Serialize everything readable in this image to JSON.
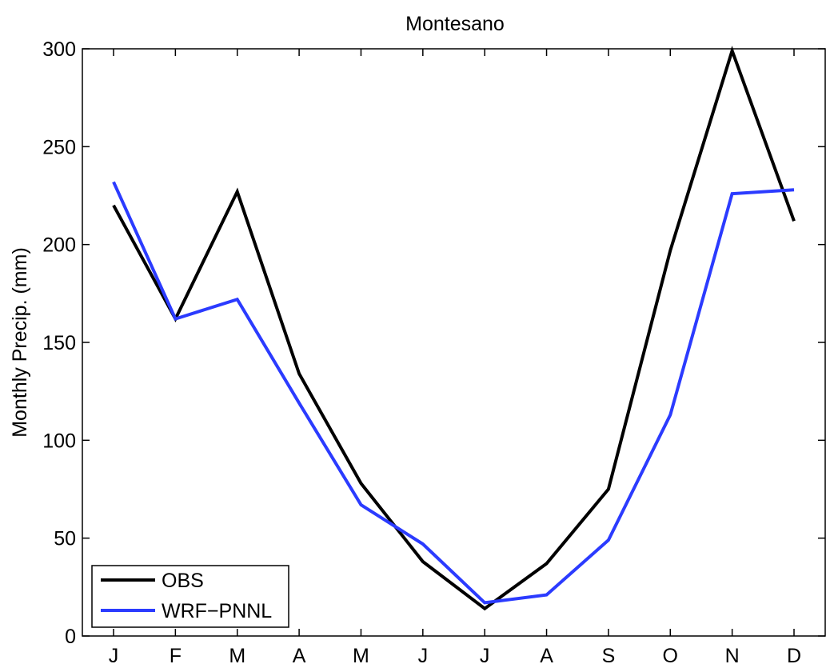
{
  "chart_data": {
    "type": "line",
    "title": "Montesano",
    "xlabel": "",
    "ylabel": "Monthly Precip. (mm)",
    "categories": [
      "J",
      "F",
      "M",
      "A",
      "M",
      "J",
      "J",
      "A",
      "S",
      "O",
      "N",
      "D"
    ],
    "ylim": [
      0,
      300
    ],
    "yticks": [
      0,
      50,
      100,
      150,
      200,
      250,
      300
    ],
    "grid": false,
    "legend_position": "bottom-left",
    "series": [
      {
        "name": "OBS",
        "color": "#000000",
        "values": [
          220,
          162,
          227,
          134,
          78,
          38,
          14,
          37,
          75,
          197,
          299,
          212
        ]
      },
      {
        "name": "WRF−PNNL",
        "color": "#2b3bff",
        "values": [
          232,
          162,
          172,
          119,
          67,
          47,
          17,
          21,
          49,
          113,
          226,
          228
        ]
      }
    ]
  }
}
